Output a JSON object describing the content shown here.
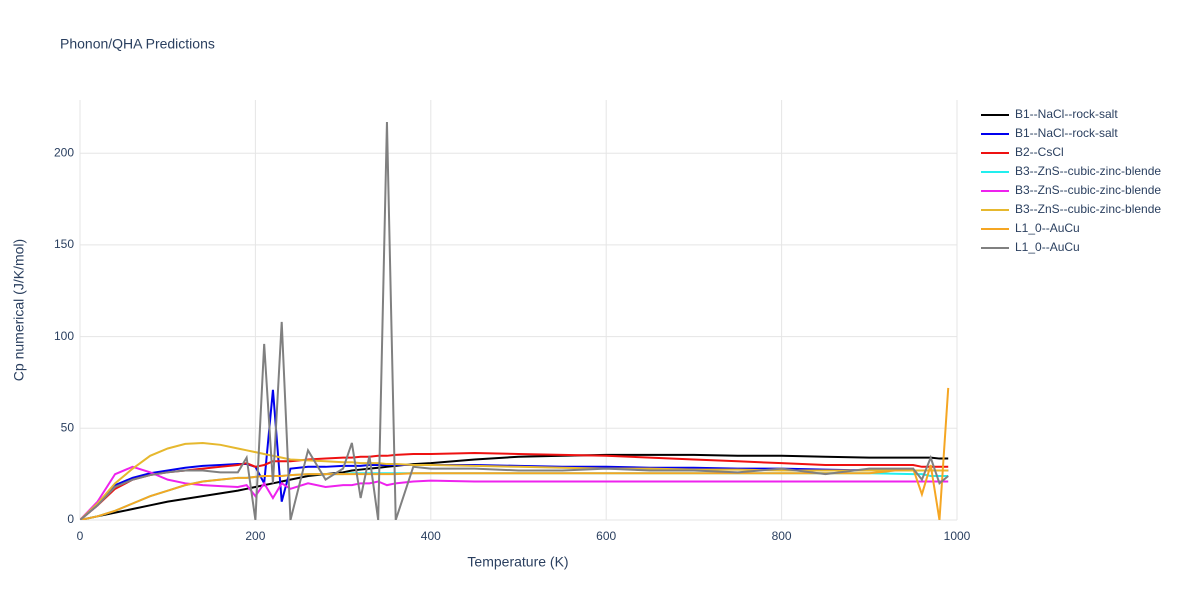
{
  "chart_data": {
    "type": "line",
    "title": "Phonon/QHA Predictions",
    "x_label": "Temperature (K)",
    "y_label": "Cp numerical (J/K/mol)",
    "x": [
      0,
      20,
      40,
      60,
      80,
      100,
      120,
      140,
      160,
      180,
      190,
      200,
      210,
      220,
      230,
      240,
      260,
      280,
      300,
      310,
      320,
      330,
      340,
      350,
      360,
      380,
      400,
      450,
      500,
      550,
      600,
      650,
      700,
      750,
      800,
      850,
      900,
      950,
      960,
      970,
      980,
      990
    ],
    "series": [
      {
        "name": "B1--NaCl--rock-salt",
        "color": "#000000",
        "values": [
          0,
          2,
          4,
          6,
          8,
          10,
          11.5,
          13,
          14.5,
          16,
          17,
          18,
          19,
          20,
          21,
          22,
          24,
          25,
          26,
          27,
          27.5,
          28,
          28.5,
          29,
          29.5,
          30.5,
          31,
          33,
          34.5,
          35,
          35.5,
          35.5,
          35.5,
          35,
          35,
          34.5,
          34,
          34,
          34,
          34,
          33.5,
          33.5
        ]
      },
      {
        "name": "B1--NaCl--rock-salt",
        "color": "#0000ee",
        "values": [
          0,
          8,
          19,
          23,
          25.5,
          27,
          28.5,
          29.5,
          30,
          30.5,
          30.5,
          29,
          20,
          71,
          10,
          28,
          29,
          29,
          29.5,
          29.5,
          29.5,
          30,
          30,
          30,
          30,
          30,
          30,
          30,
          29.5,
          29,
          29,
          28.5,
          28.5,
          28,
          28,
          27.5,
          27,
          27,
          27,
          27,
          27,
          27
        ]
      },
      {
        "name": "B2--CsCl",
        "color": "#ee1111",
        "values": [
          0,
          8,
          17,
          22,
          24.5,
          26,
          27,
          28,
          29,
          30,
          31,
          29,
          30,
          32,
          32,
          32,
          33,
          33.5,
          34,
          34,
          34.5,
          34.5,
          35,
          35,
          35.5,
          36,
          36,
          36.5,
          36,
          35.5,
          35,
          34,
          33,
          32,
          31,
          30,
          30,
          30,
          29,
          29,
          29,
          29
        ]
      },
      {
        "name": "B3--ZnS--cubic-zinc-blende",
        "color": "#22eeee",
        "values": [
          0,
          2,
          5,
          9,
          13,
          16,
          19,
          21,
          22,
          23,
          23,
          23.5,
          24,
          24,
          24,
          24.5,
          25,
          25,
          25,
          25.5,
          25.5,
          25.5,
          25.5,
          25.5,
          25.5,
          25.5,
          25.5,
          25.5,
          25.5,
          25.5,
          25.5,
          25.5,
          25.5,
          25.5,
          25.5,
          25.5,
          25.5,
          25,
          25,
          24,
          24,
          24
        ]
      },
      {
        "name": "B3--ZnS--cubic-zinc-blende",
        "color": "#ee22ee",
        "values": [
          0,
          10,
          25,
          29,
          26,
          22,
          20,
          19,
          18.5,
          18,
          19,
          13,
          20,
          12,
          20,
          17,
          20,
          18,
          19,
          19,
          20,
          20,
          21,
          19,
          20,
          21,
          21.5,
          21,
          21,
          21,
          21,
          21,
          21,
          21,
          21,
          21,
          21,
          21,
          21,
          21,
          21,
          21
        ]
      },
      {
        "name": "B3--ZnS--cubic-zinc-blende",
        "color": "#e6b82e",
        "values": [
          0,
          9,
          20,
          28,
          35,
          39,
          41.5,
          42,
          41,
          39,
          38,
          37,
          36,
          35,
          34,
          33,
          32.5,
          32,
          31.5,
          31.5,
          31,
          31,
          31,
          30.5,
          30.5,
          30,
          30,
          29.5,
          29,
          28.5,
          28,
          28,
          27.5,
          27.5,
          27,
          27,
          27,
          27,
          27,
          27,
          27,
          27
        ]
      },
      {
        "name": "L1_0--AuCu",
        "color": "#f5a623",
        "values": [
          0,
          2,
          5,
          9,
          13,
          16,
          19,
          21,
          22,
          23,
          23,
          23.5,
          24,
          24,
          24,
          24.5,
          25,
          25,
          25,
          25,
          25,
          25,
          25,
          25,
          25,
          25.5,
          25.5,
          25.5,
          25.5,
          25.5,
          25.5,
          25.5,
          25.5,
          25.5,
          25.5,
          25.5,
          25.5,
          28,
          14,
          30,
          0,
          72
        ]
      },
      {
        "name": "L1_0--AuCu",
        "color": "#808080",
        "values": [
          0,
          8,
          18,
          22,
          24.5,
          26,
          27,
          27,
          26,
          26,
          34,
          0,
          96,
          20,
          108,
          0,
          38,
          22,
          28,
          42,
          12,
          35,
          0,
          217,
          0,
          29,
          28,
          28,
          27,
          27,
          28,
          27,
          27,
          26,
          28,
          25,
          28,
          28,
          22,
          34,
          20,
          24
        ]
      }
    ],
    "xlim": [
      0,
      1000
    ],
    "xticks": [
      0,
      200,
      400,
      600,
      800,
      1000
    ],
    "ylim": [
      0,
      229
    ],
    "yticks": [
      0,
      50,
      100,
      150,
      200
    ],
    "grid": true,
    "legend": "right"
  }
}
